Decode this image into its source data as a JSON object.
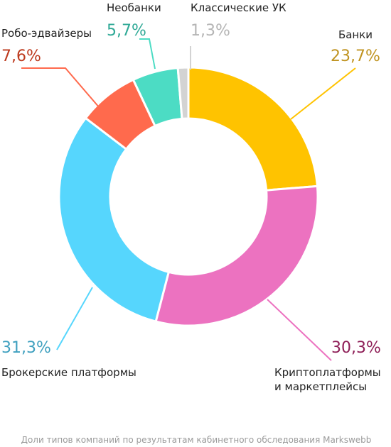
{
  "chart_data": {
    "type": "pie",
    "categories": [
      "Банки",
      "Криптоплатформы и маркетплейсы",
      "Брокерские платформы",
      "Робо-эдвайзеры",
      "Необанки",
      "Классические УК"
    ],
    "values": [
      23.7,
      30.3,
      31.3,
      7.6,
      5.7,
      1.3
    ],
    "value_labels": [
      "23,7%",
      "30,3%",
      "31,3%",
      "7,6%",
      "5,7%",
      "1,3%"
    ],
    "name_lines": [
      [
        "Банки"
      ],
      [
        "Криптоплатформы",
        "и маркетплейсы"
      ],
      [
        "Брокерские платформы"
      ],
      [
        "Робо-эдвайзеры"
      ],
      [
        "Необанки"
      ],
      [
        "Классические УК"
      ]
    ],
    "colors": [
      "#ffc300",
      "#ec72c0",
      "#56d6fd",
      "#ff6a4d",
      "#4cdcc4",
      "#d3d3d3"
    ],
    "label_colors": [
      "#c09422",
      "#8e1e57",
      "#3fa0bf",
      "#bd3a1e",
      "#2fa996",
      "#b5b5b5"
    ],
    "donut": true,
    "start": "top",
    "direction": "clockwise"
  },
  "footnote": "Доли типов компаний по результатам кабинетного обследования Markswebb"
}
